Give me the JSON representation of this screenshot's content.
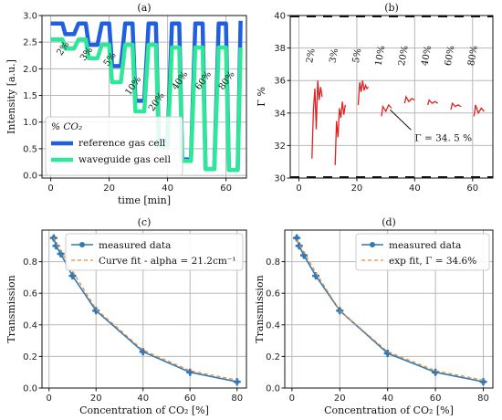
{
  "chart_data": [
    {
      "panel": "(a)",
      "type": "line",
      "xlabel": "time [min]",
      "ylabel": "Intensity [a.u.]",
      "xlim": [
        -3,
        67
      ],
      "ylim": [
        -0.05,
        3.0
      ],
      "xticks": [
        0,
        20,
        40,
        60
      ],
      "yticks": [
        0.0,
        0.5,
        1.0,
        1.5,
        2.0,
        2.5,
        3.0
      ],
      "grid": true,
      "legend_title": "% CO₂",
      "legend_position": "lower-left",
      "colors": {
        "reference": "#1f5fe0",
        "waveguide": "#2ee89a"
      },
      "series": [
        {
          "name": "reference gas cell",
          "x": [
            0,
            4,
            5,
            8,
            9.5,
            12,
            13,
            16,
            17.5,
            20,
            21,
            24,
            25.5,
            28,
            29,
            32,
            33.5,
            36,
            37,
            40,
            41.5,
            44,
            45,
            48,
            49.5,
            52,
            53,
            56,
            57.5,
            60,
            61,
            64,
            65
          ],
          "y": [
            2.85,
            2.85,
            2.65,
            2.65,
            2.85,
            2.85,
            2.45,
            2.45,
            2.85,
            2.85,
            2.05,
            2.05,
            2.85,
            2.85,
            1.4,
            1.4,
            2.85,
            2.85,
            0.65,
            0.65,
            2.85,
            2.85,
            0.3,
            0.3,
            2.85,
            2.85,
            0.12,
            0.12,
            2.85,
            2.85,
            0.1,
            0.1,
            2.9
          ]
        },
        {
          "name": "waveguide gas cell",
          "x": [
            0,
            4,
            5,
            8,
            9.5,
            12,
            13,
            16,
            17.5,
            20,
            21,
            24,
            25.5,
            28,
            29,
            32,
            33.5,
            36,
            37,
            40,
            41.5,
            44,
            45,
            48,
            49.5,
            52,
            53,
            56,
            57.5,
            60,
            61,
            64,
            65
          ],
          "y": [
            2.55,
            2.55,
            2.38,
            2.38,
            2.55,
            2.55,
            2.2,
            2.2,
            2.45,
            2.45,
            1.75,
            1.75,
            2.45,
            2.45,
            1.2,
            1.2,
            2.45,
            2.45,
            0.55,
            0.55,
            2.4,
            2.4,
            0.27,
            0.27,
            2.4,
            2.4,
            0.12,
            0.12,
            2.4,
            2.4,
            0.1,
            0.1,
            2.4
          ]
        }
      ],
      "annotations": [
        {
          "text": "2%",
          "x": 5,
          "y": 2.35
        },
        {
          "text": "3%",
          "x": 13,
          "y": 2.25
        },
        {
          "text": "5%",
          "x": 21,
          "y": 2.15
        },
        {
          "text": "10%",
          "x": 29,
          "y": 1.65
        },
        {
          "text": "20%",
          "x": 37,
          "y": 1.35
        },
        {
          "text": "40%",
          "x": 45,
          "y": 1.75
        },
        {
          "text": "60%",
          "x": 53,
          "y": 1.75
        },
        {
          "text": "80%",
          "x": 61,
          "y": 1.75
        }
      ]
    },
    {
      "panel": "(b)",
      "type": "line",
      "xlabel": "",
      "ylabel": "Γ %",
      "xlim": [
        -3,
        67
      ],
      "ylim": [
        30,
        40
      ],
      "xticks": [
        0,
        20,
        40,
        60
      ],
      "yticks": [
        30,
        32,
        34,
        36,
        38,
        40
      ],
      "grid": true,
      "colors": {
        "gamma": "#e02020",
        "baseline": "#111111"
      },
      "series": [
        {
          "name": "",
          "segments": [
            {
              "x": [
                4.5,
                5,
                5.5,
                6,
                6.5,
                7,
                7.5,
                8
              ],
              "y": [
                31.2,
                34.2,
                35.5,
                33.0,
                36.0,
                34.8,
                35.6,
                35.0
              ]
            },
            {
              "x": [
                12.5,
                13,
                13.5,
                14,
                14.5,
                15,
                15.5,
                16
              ],
              "y": [
                30.8,
                33.5,
                32.5,
                34.3,
                33.7,
                34.7,
                33.9,
                34.5
              ]
            },
            {
              "x": [
                20.5,
                21,
                21.5,
                22,
                22.5,
                23,
                23.5,
                24
              ],
              "y": [
                34.5,
                35.9,
                35.3,
                36.0,
                35.4,
                35.7,
                35.5,
                35.6
              ]
            },
            {
              "x": [
                28.5,
                29,
                30,
                31,
                32
              ],
              "y": [
                33.8,
                34.4,
                34.1,
                34.5,
                34.3
              ]
            },
            {
              "x": [
                36.5,
                37,
                38,
                39,
                40
              ],
              "y": [
                34.6,
                35.0,
                34.7,
                34.9,
                34.8
              ]
            },
            {
              "x": [
                44.5,
                45,
                46,
                47,
                48
              ],
              "y": [
                34.5,
                34.8,
                34.6,
                34.7,
                34.6
              ]
            },
            {
              "x": [
                52.5,
                53,
                54,
                55,
                56
              ],
              "y": [
                34.2,
                34.6,
                34.4,
                34.5,
                34.4
              ]
            },
            {
              "x": [
                60.5,
                61,
                62,
                63,
                64
              ],
              "y": [
                33.8,
                34.5,
                34.0,
                34.3,
                34.1
              ]
            }
          ]
        }
      ],
      "annotations": [
        {
          "text": "2%",
          "x": 5,
          "y": 37.5
        },
        {
          "text": "3%",
          "x": 13,
          "y": 37.5
        },
        {
          "text": "5%",
          "x": 21,
          "y": 37.5
        },
        {
          "text": "10%",
          "x": 29,
          "y": 37.5
        },
        {
          "text": "20%",
          "x": 37,
          "y": 37.5
        },
        {
          "text": "40%",
          "x": 45,
          "y": 37.5
        },
        {
          "text": "60%",
          "x": 53,
          "y": 37.5
        },
        {
          "text": "80%",
          "x": 61,
          "y": 37.5
        }
      ],
      "callout": {
        "text": "Γ = 34. 5  %",
        "x": 40,
        "y": 32.4,
        "arrow_to_x": 31.5,
        "arrow_to_y": 34.2
      }
    },
    {
      "panel": "(c)",
      "type": "line",
      "xlabel": "Concentration  of CO₂ [%]",
      "ylabel": "Transmission",
      "xlim": [
        -3,
        84
      ],
      "ylim": [
        0.0,
        1.0
      ],
      "xticks": [
        0,
        20,
        40,
        60,
        80
      ],
      "yticks": [
        0.0,
        0.2,
        0.4,
        0.6,
        0.8
      ],
      "grid": true,
      "legend_position": "top-right",
      "colors": {
        "measured": "#2f7ab8",
        "fit": "#f28a2e"
      },
      "x": [
        2,
        3,
        5,
        10,
        20,
        40,
        60,
        80
      ],
      "series": [
        {
          "name": "measured data",
          "values": [
            0.95,
            0.9,
            0.85,
            0.71,
            0.49,
            0.23,
            0.1,
            0.04
          ]
        },
        {
          "name": "Curve fit - alpha = 21.2cm⁻¹",
          "values": [
            0.95,
            0.92,
            0.87,
            0.74,
            0.5,
            0.24,
            0.11,
            0.05
          ]
        }
      ]
    },
    {
      "panel": "(d)",
      "type": "line",
      "xlabel": "Concentration  of CO₂ [%]",
      "ylabel": "Transmission",
      "xlim": [
        -3,
        84
      ],
      "ylim": [
        0.0,
        1.0
      ],
      "xticks": [
        0,
        20,
        40,
        60,
        80
      ],
      "yticks": [
        0.0,
        0.2,
        0.4,
        0.6,
        0.8
      ],
      "grid": true,
      "legend_position": "top-right",
      "colors": {
        "measured": "#2f7ab8",
        "fit": "#f28a2e"
      },
      "x": [
        2,
        3,
        5,
        10,
        20,
        40,
        60,
        80
      ],
      "series": [
        {
          "name": "measured data",
          "values": [
            0.95,
            0.9,
            0.84,
            0.71,
            0.49,
            0.22,
            0.1,
            0.04
          ]
        },
        {
          "name": "exp fit, Γ = 34.6%",
          "values": [
            0.94,
            0.91,
            0.86,
            0.73,
            0.49,
            0.23,
            0.11,
            0.05
          ]
        }
      ]
    }
  ]
}
